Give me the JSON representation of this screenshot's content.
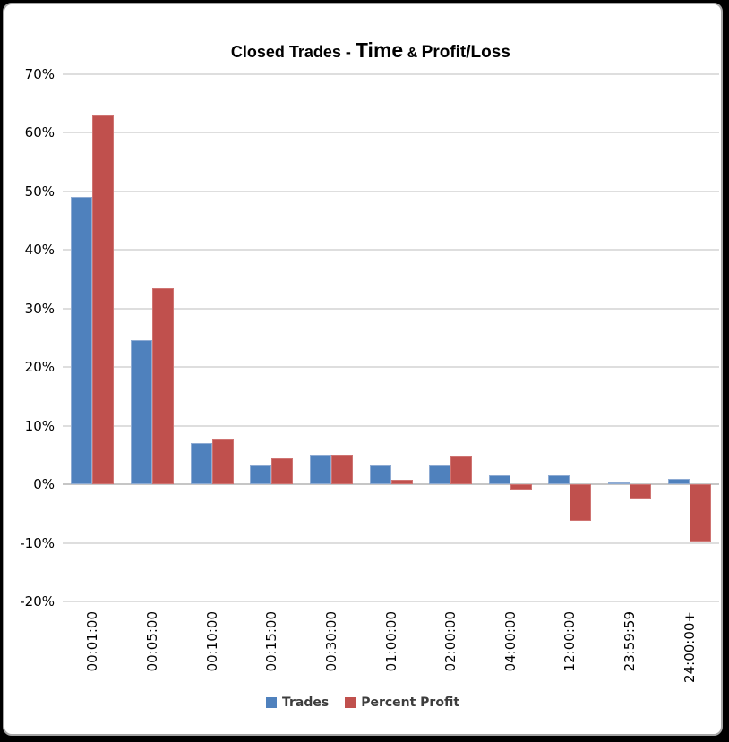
{
  "window": {
    "background": "#000000",
    "panel_background": "#ffffff",
    "panel_border_color": "#a6a6a6"
  },
  "title": {
    "part1": "Closed Trades - ",
    "part2": "Time",
    "part3": " & ",
    "part4": "Profit/Loss",
    "full": "Closed Trades - Time & Profit/Loss"
  },
  "chart_data": {
    "type": "bar",
    "title": "Closed Trades - Time & Profit/Loss",
    "categories": [
      "00:01:00",
      "00:05:00",
      "00:10:00",
      "00:15:00",
      "00:30:00",
      "01:00:00",
      "02:00:00",
      "04:00:00",
      "12:00:00",
      "23:59:59",
      "24:00:00+"
    ],
    "series": [
      {
        "name": "Trades",
        "color": "#4F81BD",
        "border_color": "#8EABD3",
        "values": [
          49.0,
          24.6,
          7.0,
          3.3,
          5.1,
          3.3,
          3.3,
          1.6,
          1.5,
          0.4,
          0.9
        ]
      },
      {
        "name": "Percent Profit",
        "color": "#C0504D",
        "border_color": "#CF7472",
        "values": [
          63.0,
          33.5,
          7.6,
          4.4,
          5.1,
          0.8,
          4.8,
          -0.9,
          -6.3,
          -2.5,
          -9.7
        ]
      }
    ],
    "xlabel": "",
    "ylabel": "",
    "ylim": [
      -20,
      70
    ],
    "y_ticks": [
      {
        "label": "70%",
        "value": 70
      },
      {
        "label": "60%",
        "value": 60
      },
      {
        "label": "50%",
        "value": 50
      },
      {
        "label": "40%",
        "value": 40
      },
      {
        "label": "30%",
        "value": 30
      },
      {
        "label": "20%",
        "value": 20
      },
      {
        "label": "10%",
        "value": 10
      },
      {
        "label": "0%",
        "value": 0
      },
      {
        "label": "-10%",
        "value": -10
      },
      {
        "label": "-20%",
        "value": -20
      }
    ],
    "grid": true,
    "gridline_color": "#DEDEDE",
    "zero_line_color": "#C6C6C6",
    "legend_position": "bottom"
  }
}
